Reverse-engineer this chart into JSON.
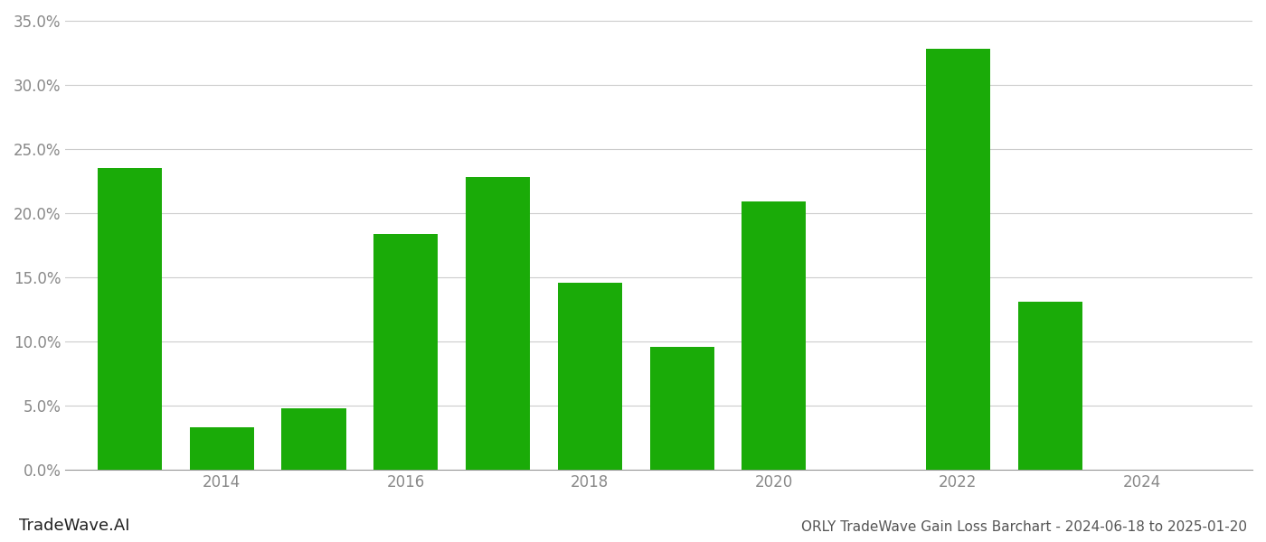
{
  "years": [
    2013,
    2014,
    2015,
    2016,
    2017,
    2018,
    2019,
    2020,
    2021,
    2022,
    2023,
    2024
  ],
  "values": [
    0.235,
    0.033,
    0.048,
    0.184,
    0.228,
    0.146,
    0.096,
    0.209,
    0.0,
    0.328,
    0.131,
    0.0
  ],
  "bar_color": "#1aab08",
  "background_color": "#ffffff",
  "title": "ORLY TradeWave Gain Loss Barchart - 2024-06-18 to 2025-01-20",
  "watermark": "TradeWave.AI",
  "ylabel_ticks": [
    0.0,
    0.05,
    0.1,
    0.15,
    0.2,
    0.25,
    0.3,
    0.35
  ],
  "xtick_positions": [
    2014,
    2016,
    2018,
    2020,
    2022,
    2024
  ],
  "xtick_labels": [
    "2014",
    "2016",
    "2018",
    "2020",
    "2022",
    "2024"
  ],
  "xlim": [
    2012.3,
    2025.2
  ],
  "ylim": [
    0,
    0.355
  ],
  "grid_color": "#cccccc",
  "title_fontsize": 11,
  "tick_fontsize": 12,
  "watermark_fontsize": 13,
  "bar_width": 0.7
}
